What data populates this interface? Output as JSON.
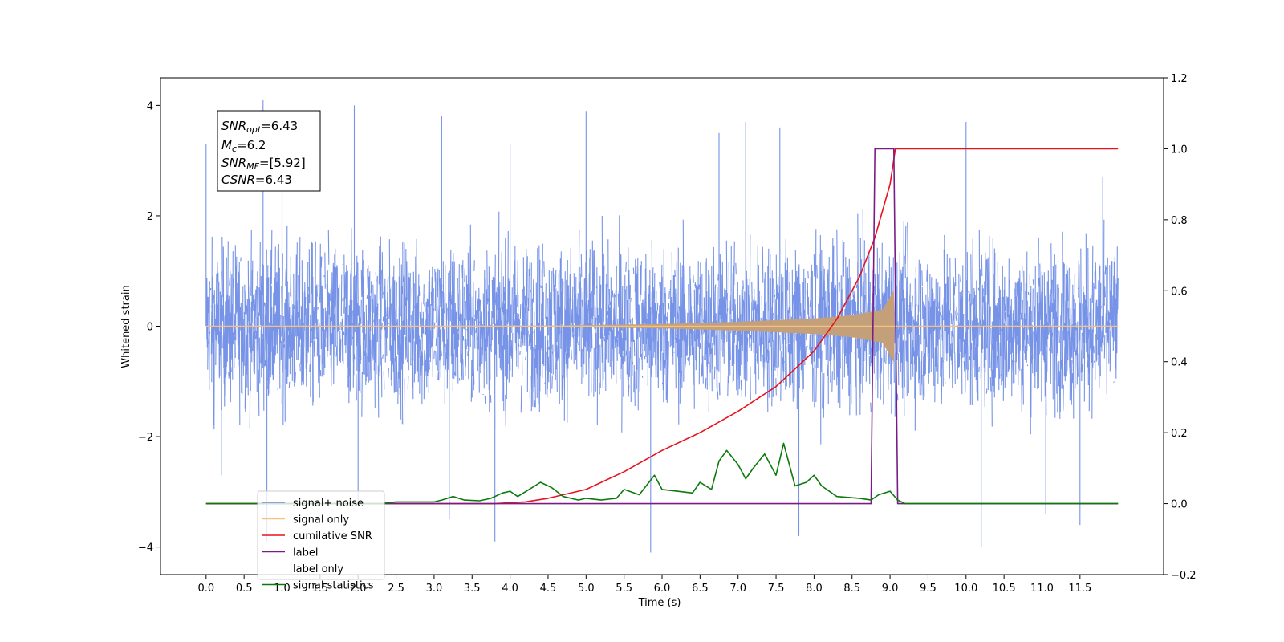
{
  "chart_data": {
    "type": "line",
    "xlabel": "Time (s)",
    "ylabel_left": "Whitened strain",
    "ylabel_right": "",
    "xlim": [
      -0.6,
      12.6
    ],
    "ylim_left": [
      -4.5,
      4.5
    ],
    "ylim_right": [
      -0.2,
      1.2
    ],
    "x_ticks": [
      0.0,
      0.5,
      1.0,
      1.5,
      2.0,
      2.5,
      3.0,
      3.5,
      4.0,
      4.5,
      5.0,
      5.5,
      6.0,
      6.5,
      7.0,
      7.5,
      8.0,
      8.5,
      9.0,
      9.5,
      10.0,
      10.5,
      11.0,
      11.5
    ],
    "x_tick_labels": [
      "0.0",
      "0.5",
      "1.0",
      "1.5",
      "2.0",
      "2.5",
      "3.0",
      "3.5",
      "4.0",
      "4.5",
      "5.0",
      "5.5",
      "6.0",
      "6.5",
      "7.0",
      "7.5",
      "8.0",
      "8.5",
      "9.0",
      "9.5",
      "10.0",
      "10.5",
      "11.0",
      "11.5"
    ],
    "y_left_ticks": [
      -4,
      -2,
      0,
      2,
      4
    ],
    "y_left_tick_labels": [
      "−4",
      "−2",
      "0",
      "2",
      "4"
    ],
    "y_right_ticks": [
      -0.2,
      0.0,
      0.2,
      0.4,
      0.6,
      0.8,
      1.0,
      1.2
    ],
    "y_right_tick_labels": [
      "−0.2",
      "0.0",
      "0.2",
      "0.4",
      "0.6",
      "0.8",
      "1.0",
      "1.2"
    ],
    "grid": false,
    "legend_position": "lower-left",
    "annotation": {
      "snr_opt_main": "SNR",
      "snr_opt_sub": "opt",
      "snr_opt_value": "=6.43",
      "mc_main": "M",
      "mc_sub": "c",
      "mc_value": "=6.2",
      "snr_mf_main": "SNR",
      "snr_mf_sub": "MF",
      "snr_mf_value": "=[5.92]",
      "csnr_main": "CSNR",
      "csnr_value": "=6.43"
    },
    "series": [
      {
        "name": "signal+ noise",
        "axis": "left",
        "color": "#6f8de6",
        "style": "noise",
        "x_range": [
          0.0,
          12.0
        ],
        "typical_amplitude": 1.7,
        "spikes": [
          [
            0.0,
            3.3
          ],
          [
            0.1,
            -1.8
          ],
          [
            0.2,
            -2.7
          ],
          [
            0.75,
            4.1
          ],
          [
            0.8,
            -3.9
          ],
          [
            1.0,
            3.7
          ],
          [
            1.95,
            4.0
          ],
          [
            2.0,
            -3.2
          ],
          [
            3.1,
            3.8
          ],
          [
            3.2,
            -3.5
          ],
          [
            3.8,
            -3.9
          ],
          [
            4.0,
            3.3
          ],
          [
            5.0,
            3.9
          ],
          [
            5.85,
            -4.1
          ],
          [
            6.75,
            3.5
          ],
          [
            7.1,
            3.7
          ],
          [
            7.55,
            3.6
          ],
          [
            7.8,
            -3.8
          ],
          [
            10.0,
            3.7
          ],
          [
            10.2,
            -4.0
          ],
          [
            11.05,
            -3.4
          ],
          [
            11.5,
            -3.6
          ],
          [
            11.8,
            2.7
          ]
        ]
      },
      {
        "name": "signal only",
        "axis": "left",
        "color": "#f4c27e",
        "style": "chirp",
        "x_range": [
          0.0,
          12.0
        ],
        "envelope": [
          [
            0.0,
            0.0
          ],
          [
            4.5,
            0.01
          ],
          [
            6.0,
            0.04
          ],
          [
            7.0,
            0.08
          ],
          [
            8.0,
            0.14
          ],
          [
            8.5,
            0.2
          ],
          [
            8.9,
            0.3
          ],
          [
            9.05,
            0.65
          ],
          [
            9.06,
            0.0
          ],
          [
            12.0,
            0.0
          ]
        ]
      },
      {
        "name": "cumilative SNR",
        "axis": "right",
        "color": "#e8121f",
        "points": [
          [
            0.0,
            0.0
          ],
          [
            3.8,
            0.0
          ],
          [
            4.2,
            0.005
          ],
          [
            4.5,
            0.015
          ],
          [
            5.0,
            0.04
          ],
          [
            5.5,
            0.09
          ],
          [
            6.0,
            0.15
          ],
          [
            6.5,
            0.2
          ],
          [
            7.0,
            0.26
          ],
          [
            7.5,
            0.33
          ],
          [
            8.0,
            0.43
          ],
          [
            8.3,
            0.52
          ],
          [
            8.6,
            0.64
          ],
          [
            8.8,
            0.75
          ],
          [
            9.0,
            0.9
          ],
          [
            9.05,
            0.97
          ],
          [
            9.07,
            1.0
          ],
          [
            12.0,
            1.0
          ]
        ]
      },
      {
        "name": "label",
        "axis": "right",
        "color": "#7a1c86",
        "points": [
          [
            0.0,
            0.0
          ],
          [
            8.75,
            0.0
          ],
          [
            8.8,
            1.0
          ],
          [
            9.05,
            1.0
          ],
          [
            9.1,
            0.0
          ],
          [
            12.0,
            0.0
          ]
        ]
      },
      {
        "name": "label only",
        "axis": "right",
        "color": "#ffffff",
        "points": [
          [
            0.0,
            0.0
          ],
          [
            12.0,
            0.0
          ]
        ]
      },
      {
        "name": "signal statistics",
        "axis": "right",
        "color": "#0b7a0b",
        "points": [
          [
            0.0,
            0.0
          ],
          [
            2.3,
            0.0
          ],
          [
            2.5,
            0.005
          ],
          [
            3.0,
            0.005
          ],
          [
            3.1,
            0.01
          ],
          [
            3.25,
            0.02
          ],
          [
            3.4,
            0.01
          ],
          [
            3.6,
            0.008
          ],
          [
            3.75,
            0.015
          ],
          [
            3.9,
            0.03
          ],
          [
            4.0,
            0.035
          ],
          [
            4.1,
            0.02
          ],
          [
            4.25,
            0.04
          ],
          [
            4.4,
            0.06
          ],
          [
            4.55,
            0.045
          ],
          [
            4.7,
            0.02
          ],
          [
            4.9,
            0.01
          ],
          [
            5.0,
            0.015
          ],
          [
            5.2,
            0.01
          ],
          [
            5.4,
            0.015
          ],
          [
            5.5,
            0.04
          ],
          [
            5.7,
            0.025
          ],
          [
            5.9,
            0.08
          ],
          [
            6.0,
            0.04
          ],
          [
            6.2,
            0.035
          ],
          [
            6.4,
            0.03
          ],
          [
            6.5,
            0.06
          ],
          [
            6.65,
            0.04
          ],
          [
            6.75,
            0.12
          ],
          [
            6.85,
            0.15
          ],
          [
            7.0,
            0.11
          ],
          [
            7.1,
            0.07
          ],
          [
            7.2,
            0.1
          ],
          [
            7.35,
            0.14
          ],
          [
            7.5,
            0.08
          ],
          [
            7.6,
            0.17
          ],
          [
            7.75,
            0.05
          ],
          [
            7.9,
            0.06
          ],
          [
            8.0,
            0.08
          ],
          [
            8.1,
            0.05
          ],
          [
            8.3,
            0.02
          ],
          [
            8.6,
            0.015
          ],
          [
            8.75,
            0.01
          ],
          [
            8.85,
            0.025
          ],
          [
            9.0,
            0.035
          ],
          [
            9.1,
            0.01
          ],
          [
            9.2,
            0.0
          ],
          [
            12.0,
            0.0
          ]
        ]
      }
    ]
  }
}
